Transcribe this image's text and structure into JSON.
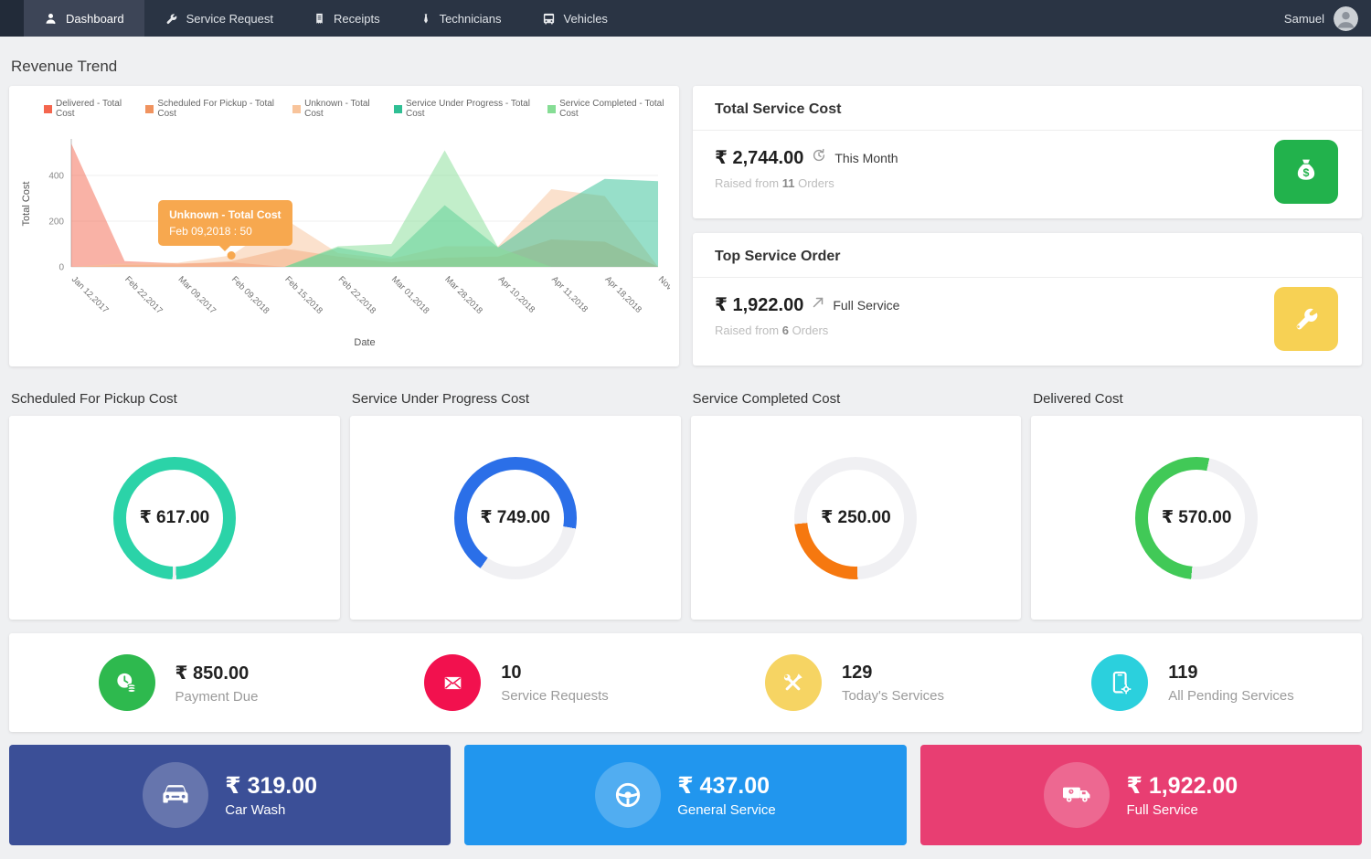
{
  "nav": {
    "items": [
      {
        "label": "Dashboard",
        "icon": "user-icon",
        "active": true
      },
      {
        "label": "Service Request",
        "icon": "wrench-icon",
        "active": false
      },
      {
        "label": "Receipts",
        "icon": "receipt-icon",
        "active": false
      },
      {
        "label": "Technicians",
        "icon": "tie-icon",
        "active": false
      },
      {
        "label": "Vehicles",
        "icon": "vehicle-icon",
        "active": false
      }
    ],
    "user": {
      "name": "Samuel"
    }
  },
  "page_title": "Revenue Trend",
  "chart_data": {
    "type": "area",
    "title": "Revenue Trend",
    "xlabel": "Date",
    "ylabel": "Total Cost",
    "yticks": [
      0,
      200,
      400
    ],
    "ylim": [
      0,
      560
    ],
    "grid": true,
    "legend_position": "top",
    "categories": [
      "Jan 12,2017",
      "Feb 22,2017",
      "Mar 09,2017",
      "Feb 09,2018",
      "Feb 15,2018",
      "Feb 22,2018",
      "Mar 01,2018",
      "Mar 28,2018",
      "Apr 10,2018",
      "Apr 11,2018",
      "Apr 18,2018",
      "Nov ..."
    ],
    "series": [
      {
        "name": "Delivered - Total Cost",
        "color": "#f4664e",
        "values": [
          540,
          25,
          15,
          20,
          0,
          0,
          0,
          0,
          0,
          0,
          0,
          0
        ]
      },
      {
        "name": "Scheduled For Pickup - Total Cost",
        "color": "#f0935f",
        "values": [
          0,
          8,
          10,
          25,
          80,
          45,
          20,
          40,
          45,
          120,
          110,
          0
        ]
      },
      {
        "name": "Unknown - Total Cost",
        "color": "#f8c49b",
        "values": [
          0,
          15,
          18,
          50,
          210,
          60,
          35,
          90,
          90,
          340,
          310,
          0
        ]
      },
      {
        "name": "Service Under Progress - Total Cost",
        "color": "#2fbf94",
        "values": [
          0,
          0,
          0,
          0,
          0,
          85,
          45,
          270,
          85,
          250,
          385,
          375
        ]
      },
      {
        "name": "Service Completed - Total Cost",
        "color": "#86dd95",
        "values": [
          0,
          0,
          0,
          0,
          0,
          90,
          100,
          510,
          85,
          0,
          0,
          0
        ]
      }
    ],
    "tooltip": {
      "series": "Unknown - Total Cost",
      "label": "Feb 09,2018 : 50",
      "category_index": 3,
      "value": 50,
      "color": "#f7a84f"
    }
  },
  "summary_cards": [
    {
      "title": "Total Service Cost",
      "amount": "₹ 2,744.00",
      "period": "This Month",
      "period_icon": "history-icon",
      "subtext_prefix": "Raised from",
      "orders_count": "11",
      "subtext_suffix": "Orders",
      "icon": "money-bag-icon",
      "icon_bg": "#22b24c"
    },
    {
      "title": "Top Service Order",
      "amount": "₹ 1,922.00",
      "period": "Full Service",
      "period_icon": "trend-up-icon",
      "subtext_prefix": "Raised from",
      "orders_count": "6",
      "subtext_suffix": "Orders",
      "icon": "wrench-icon",
      "icon_bg": "#f7d154"
    }
  ],
  "donut_cards": [
    {
      "title": "Scheduled For Pickup Cost",
      "amount": "₹ 617.00",
      "color": "#2bd3a8",
      "percent": 99,
      "start_deg": 182
    },
    {
      "title": "Service Under Progress Cost",
      "amount": "₹ 749.00",
      "color": "#2b6fe8",
      "percent": 68,
      "start_deg": 215
    },
    {
      "title": "Service Completed Cost",
      "amount": "₹ 250.00",
      "color": "#f6780f",
      "percent": 24,
      "start_deg": 178
    },
    {
      "title": "Delivered Cost",
      "amount": "₹ 570.00",
      "color": "#41c957",
      "percent": 52,
      "start_deg": 185
    }
  ],
  "stats": [
    {
      "value": "₹ 850.00",
      "label": "Payment Due",
      "icon": "clock-coins-icon",
      "color": "#2eb94e"
    },
    {
      "value": "10",
      "label": "Service Requests",
      "icon": "envelope-icon",
      "color": "#f2114e"
    },
    {
      "value": "129",
      "label": "Today's Services",
      "icon": "tools-icon",
      "color": "#f6d463"
    },
    {
      "value": "119",
      "label": "All Pending Services",
      "icon": "phone-gear-icon",
      "color": "#2bd0dd"
    }
  ],
  "service_cards": [
    {
      "amount": "₹ 319.00",
      "label": "Car Wash",
      "icon": "car-front-icon",
      "color": "#3b4f97",
      "icon_cutout": "#6676ae"
    },
    {
      "amount": "₹ 437.00",
      "label": "General Service",
      "icon": "steering-wheel-icon",
      "color": "#2196ee",
      "icon_cutout": "#52adf2"
    },
    {
      "amount": "₹ 1,922.00",
      "label": "Full Service",
      "icon": "van-icon",
      "color": "#e83e72",
      "icon_cutout": "#ed6891"
    }
  ],
  "colors": {
    "nav_bg": "#2a3444",
    "nav_active_bg": "#3d4557",
    "donut_track": "#f0f0f3",
    "tooltip_bg": "#f7a84f",
    "page_bg": "#eff0f2"
  }
}
